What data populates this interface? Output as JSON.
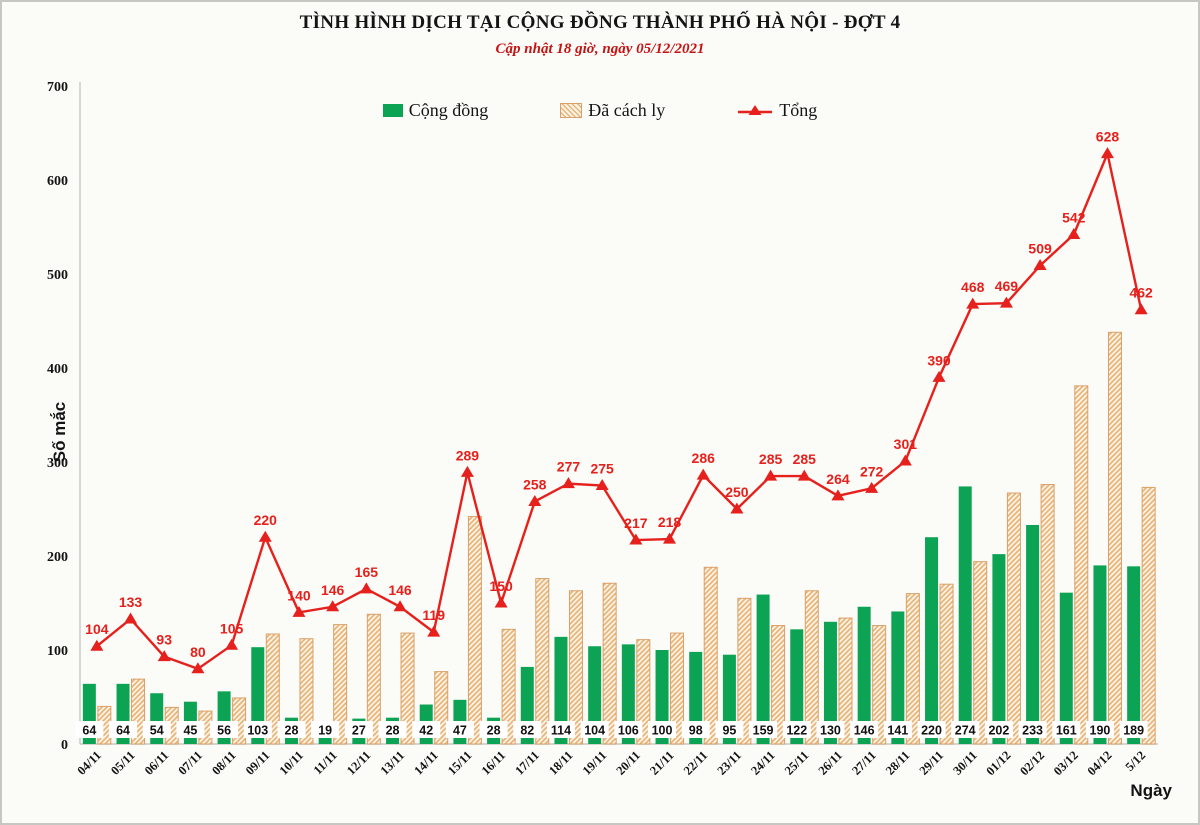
{
  "title": "TÌNH HÌNH DỊCH TẠI CỘNG ĐỒNG THÀNH PHỐ HÀ NỘI - ĐỢT 4",
  "subtitle": "Cập nhật 18 giờ, ngày 05/12/2021",
  "legend": [
    {
      "label": "Cộng đồng",
      "swatch": "green-solid"
    },
    {
      "label": "Đã cách ly",
      "swatch": "tan-hatch"
    },
    {
      "label": "Tổng",
      "swatch": "red-line-triangle"
    }
  ],
  "colors": {
    "green": "#0ca454",
    "red": "#e6201c",
    "hatch_bg": "#fdf4e7",
    "hatch_line": "#e9b478",
    "hatch_border": "#d9a06a",
    "axis": "#c8c8c4",
    "subtitle_red": "#c51212",
    "text": "#141414"
  },
  "chart_data": {
    "type": "bar",
    "subtype": "grouped bars with line overlay",
    "title": "TÌNH HÌNH DỊCH TẠI CỘNG ĐỒNG THÀNH PHỐ HÀ NỘI - ĐỢT 4",
    "subtitle": "Cập nhật 18 giờ, ngày 05/12/2021",
    "xlabel": "Ngày",
    "ylabel": "Số mắc",
    "ylim": [
      0,
      700
    ],
    "yticks": [
      0,
      100,
      200,
      300,
      400,
      500,
      600,
      700
    ],
    "grid": false,
    "legend_position": "top",
    "categories": [
      "04/11",
      "05/11",
      "06/11",
      "07/11",
      "08/11",
      "09/11",
      "10/11",
      "11/11",
      "12/11",
      "13/11",
      "14/11",
      "15/11",
      "16/11",
      "17/11",
      "18/11",
      "19/11",
      "20/11",
      "21/11",
      "22/11",
      "23/11",
      "24/11",
      "25/11",
      "26/11",
      "27/11",
      "28/11",
      "29/11",
      "30/11",
      "01/12",
      "02/12",
      "03/12",
      "04/12",
      "5/12"
    ],
    "series": [
      {
        "name": "Cộng đồng",
        "type": "bar",
        "style": "solid-green",
        "labels_shown": "in white boxes at base",
        "values": [
          64,
          64,
          54,
          45,
          56,
          103,
          28,
          19,
          27,
          28,
          42,
          47,
          28,
          82,
          114,
          104,
          106,
          100,
          98,
          95,
          159,
          122,
          130,
          146,
          141,
          220,
          274,
          202,
          233,
          161,
          190,
          189
        ]
      },
      {
        "name": "Đã cách ly",
        "type": "bar",
        "style": "tan-diagonal-hatch",
        "labels_shown": "none",
        "values": [
          40,
          69,
          39,
          35,
          49,
          117,
          112,
          127,
          138,
          118,
          77,
          242,
          122,
          176,
          163,
          171,
          111,
          118,
          188,
          155,
          126,
          163,
          134,
          126,
          160,
          170,
          194,
          267,
          276,
          381,
          438,
          273
        ]
      },
      {
        "name": "Tổng",
        "type": "line",
        "style": "red-line-triangle-markers",
        "labels_shown": "above markers",
        "values": [
          104,
          133,
          93,
          80,
          105,
          220,
          140,
          146,
          165,
          146,
          119,
          289,
          150,
          258,
          277,
          275,
          217,
          218,
          286,
          250,
          285,
          285,
          264,
          272,
          301,
          390,
          468,
          469,
          509,
          542,
          628,
          462
        ]
      }
    ]
  }
}
